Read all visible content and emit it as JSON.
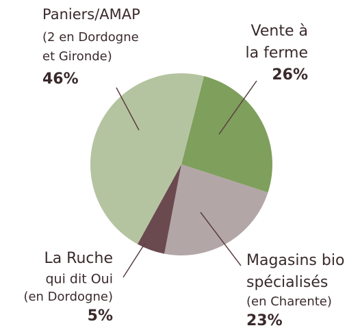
{
  "chart_data": {
    "type": "pie",
    "labels": [
      [
        "Vente à",
        "la ferme"
      ],
      [
        "Magasins bio",
        "spécialisés",
        "(en Charente)"
      ],
      [
        "La Ruche",
        "qui dit Oui",
        "(en Dordogne)"
      ],
      [
        "Paniers/AMAP",
        "(2 en Dordogne",
        "et Gironde)"
      ]
    ],
    "values": [
      26,
      23,
      5,
      46
    ],
    "value_labels": [
      "26%",
      "23%",
      "5%",
      "46%"
    ],
    "colors": [
      "#7f9f5c",
      "#b3a6a7",
      "#6a4a4f",
      "#b5c4a0"
    ]
  }
}
